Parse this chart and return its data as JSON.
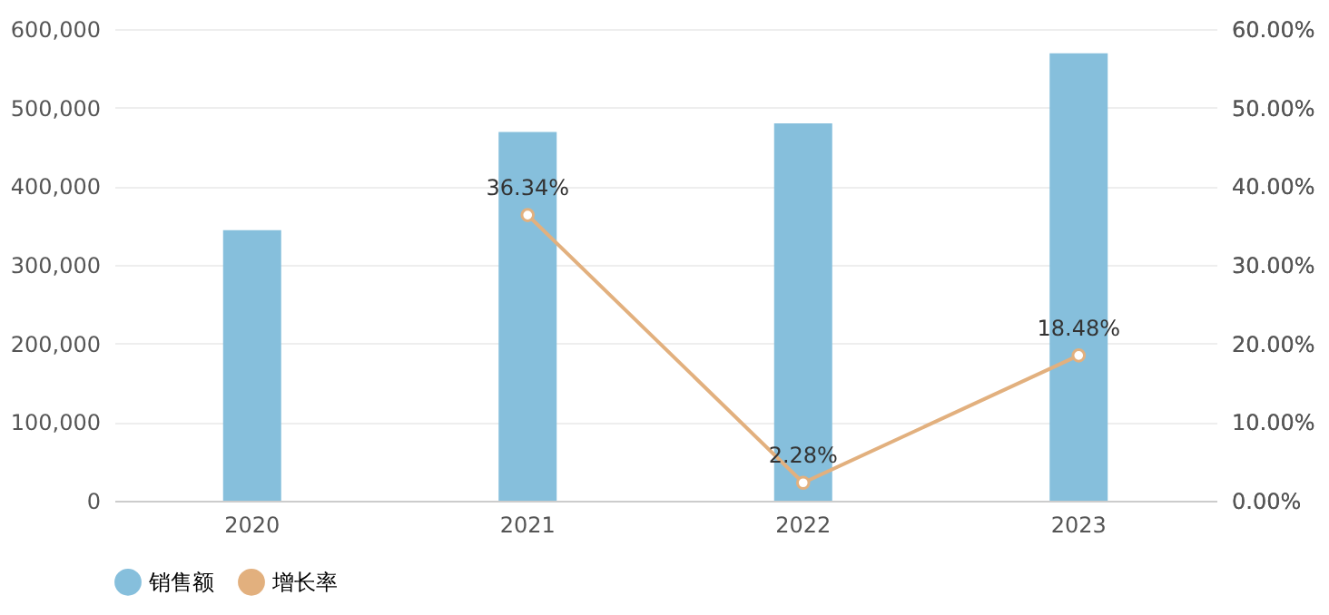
{
  "chart_data": {
    "type": "bar",
    "categories": [
      "2020",
      "2021",
      "2022",
      "2023"
    ],
    "series": [
      {
        "name": "销售额",
        "color": "#86bfdc",
        "values": [
          344000,
          469000,
          480000,
          569000
        ]
      },
      {
        "name": "增长率",
        "type": "line",
        "axis": "y2",
        "color": "#e2b07e",
        "values": [
          null,
          36.34,
          2.28,
          18.48
        ],
        "value_labels": [
          null,
          "36.34%",
          "2.28%",
          "18.48%"
        ]
      }
    ],
    "ylim": [
      0,
      600000
    ],
    "yticks": [
      {
        "value": 0,
        "label": "0"
      },
      {
        "value": 100000,
        "label": "100,000"
      },
      {
        "value": 200000,
        "label": "200,000"
      },
      {
        "value": 300000,
        "label": "300,000"
      },
      {
        "value": 400000,
        "label": "400,000"
      },
      {
        "value": 500000,
        "label": "500,000"
      },
      {
        "value": 600000,
        "label": "600,000"
      }
    ],
    "y2lim": [
      0,
      60
    ],
    "y2ticks": [
      {
        "value": 0,
        "label": "0.00%"
      },
      {
        "value": 10,
        "label": "10.00%"
      },
      {
        "value": 20,
        "label": "20.00%"
      },
      {
        "value": 30,
        "label": "30.00%"
      },
      {
        "value": 40,
        "label": "40.00%"
      },
      {
        "value": 50,
        "label": "50.00%"
      },
      {
        "value": 60,
        "label": "60.00%"
      }
    ],
    "grid": "y",
    "legend": "bottom",
    "marker": "circle",
    "line_style": "solid"
  }
}
